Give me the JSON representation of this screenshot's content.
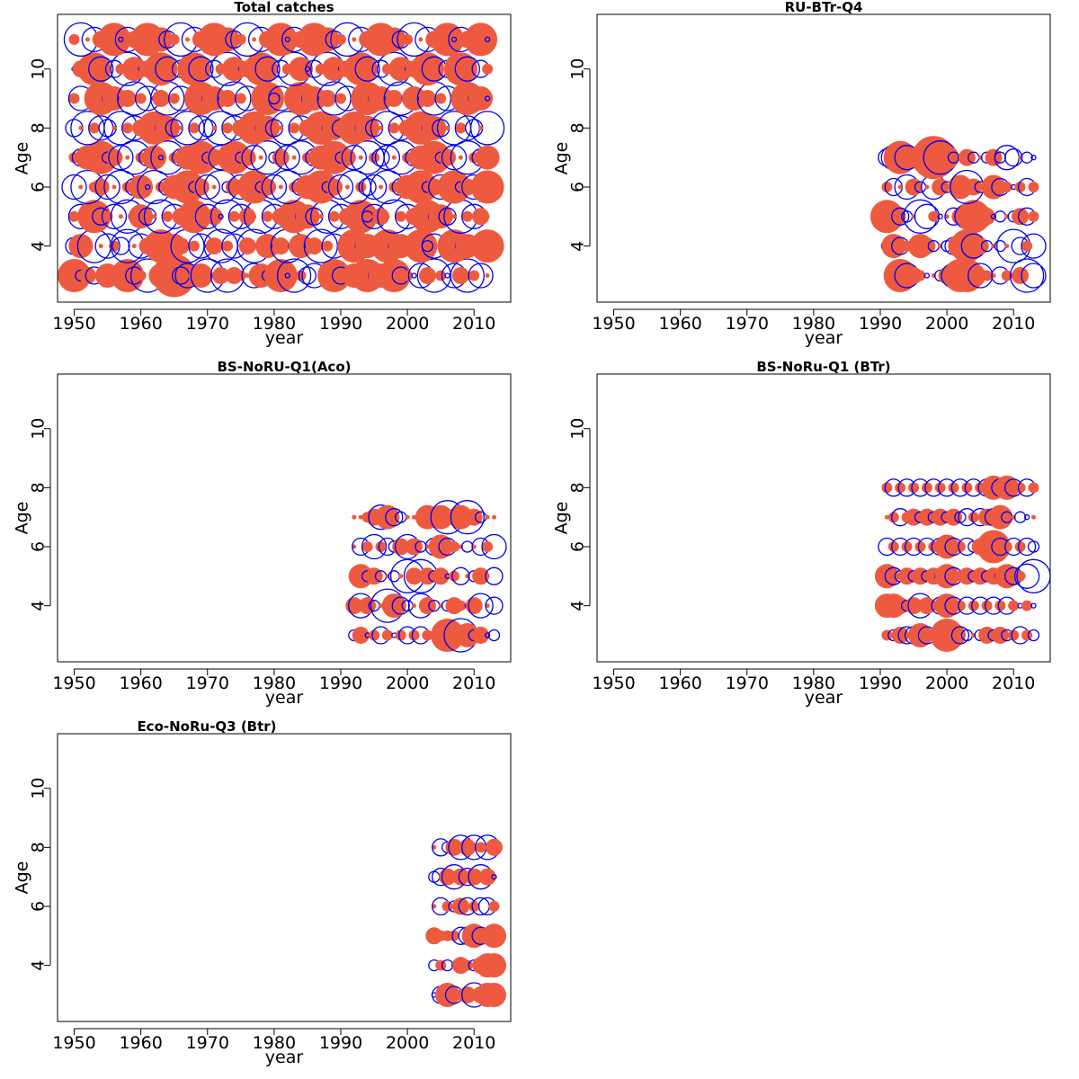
{
  "figure": {
    "x_ticks": [
      1950,
      1960,
      1970,
      1980,
      1990,
      2000,
      2010
    ],
    "y_ticks": [
      4,
      6,
      8,
      10
    ],
    "xlim": [
      1947.5,
      2015.5
    ],
    "ylim": [
      2.1,
      11.85
    ],
    "xlabel": "year",
    "ylabel": "Age",
    "colors": {
      "positive": "#ee5a40",
      "negative": "#0000ee",
      "axis": "#000000"
    }
  },
  "chart_data": [
    {
      "type": "scatter",
      "title": "Total catches",
      "xlabel": "year",
      "ylabel": "Age",
      "ages": [
        3,
        4,
        5,
        6,
        7,
        8,
        9,
        10,
        11
      ],
      "year_range": [
        1950,
        2013
      ],
      "residual_signs": [
        "+-+--++-+-+--+-+--++--+-+++-+--+--+--+-+-++-+-+-+-+--+-+--+-+-+",
        "-++-+-+--+-+-+-++-+--+-+-++-++-+--+-+-+-+-+-+--+-+-++--+-+-++-+",
        "+-++-+-+--+-+-+-+-++-+--+-++-+-+-+-+-+-+-+-+--++-+-+-+-+-+-+-++",
        "-+-++-+-+-+--+-+-+-+-+--+-++-+-+-+-+-+-+-+-+--+-+-+-+-+--+-+-++",
        "+-+-+-+-+-+-+--+-+-+-+-++-+-+--+-+-+-+-+-+-+-+--+-+-+-+-+-+-+-+",
        "-+-+--+-+-+-+-+-+-+--+-+-+-+-+-+-+-+-+-+--+-+-+-+-+-+-+-+-+--+-",
        "+-+-+-+-+-+--+-+-+-+-+-+-+-+-+--+-+-+-+-+-+-+-+-+--+-+-+-+-+-+-",
        "-+-+-+-+-+-+-+-+--+-+-+-+-+-+-+-+-+--+-+-+-+-+-+-+-+-+-+--+-+-+",
        "+-+-+-+--+-+-+-+-+-+-+-+-+-+-+-+--+-+-+-+-+-+-+-+-+-+-+-+--+-+-"
      ],
      "residual_sizes": [
        "5233141253251426342451353214423515234125314352415321435214352412",
        "3425142351432514352413524135241352413524135241352413524135241352",
        "2415324152431524315243152431524315243152431524315243152431524315",
        "4152341523415234152341523415234152341523415234152341523415234152",
        "2341523415234152341523415234152341523415234152341523415234152341",
        "3152431524315243152431524315243152431524315243152431524315243152",
        "2413524135241352413524135241352413524135241352413524135241352413",
        "1325413254132541325413254132541325413254132541325413254132541325",
        "2514325143251432514325143251432514325143251432514325143251432514"
      ]
    },
    {
      "type": "scatter",
      "title": "RU-BTr-Q4",
      "xlabel": "year",
      "ylabel": "Age",
      "ages": [
        3,
        4,
        5,
        6,
        7
      ],
      "year_range": [
        1991,
        2013
      ],
      "residual_signs": [
        "+-+-++-+-+-+++-++-+-+--",
        "-+-+-++-+--++-+-+-+--+-",
        "++--+--+-+-+-+++--+-+-+",
        "+-+-+-+-+-++-+--+-+-+-+",
        "--+-++++-+--+-+-+---+--"
      ],
      "residual_sizes": [
        "13543211234554421321354",
        "24321432123454321215324",
        "54321542113345431212332",
        "23143214321453214321232",
        "34543256542132123243121"
      ]
    },
    {
      "type": "scatter",
      "title": "BS-NoRU-Q1(Aco)",
      "xlabel": "year",
      "ylabel": "Age",
      "ages": [
        3,
        4,
        5,
        6,
        7
      ],
      "year_range": [
        1992,
        2013
      ],
      "residual_signs": [
        "-+-+-+-+-+-+-+++-+-+--",
        "+-+-+-+--+-+-+-++-+-+-",
        "-+-+-+-+-+-+-+-+-+-++-",
        "+-+-+--+-+-+-+-++-+-+-",
        "++++-+--++++++-++-+-++"
      ],
      "residual_sizes": [
        "2312321232321354542312",
        "3432154321432123213413",
        "1423212153532312312313",
        "1324232343213432121324",
        "1123443211243453453211"
      ]
    },
    {
      "type": "scatter",
      "title": "BS-NoRu-Q1 (BTr)",
      "xlabel": "year",
      "ylabel": "Age",
      "ages": [
        3,
        4,
        5,
        6,
        7,
        8
      ],
      "year_range": [
        1991,
        2013
      ],
      "residual_signs": [
        "+-+--+-+-++--+-+-+-+-+-",
        "+++-+-++-+-+-+-+-+-+-+-",
        "+--+-+-+-+-++-+-+-+-+--",
        "-+-+-+-+-+-+--+-+-+-+--",
        "++-++-+-+-+--+-+-+-+--+",
        "+-+-+-+-+-+-+-+-+-+-+-+"
      ],
      "residual_sizes": [
        "22333432254321232322322",
        "44323432343232323232121",
        "43232323243232323243245",
        "32323232343232325323232",
        "12323232323232333421211",
        "23232323232323234343232"
      ]
    },
    {
      "type": "scatter",
      "title": "Eco-NoRu-Q3 (Btr)",
      "xlabel": "year",
      "ylabel": "Age",
      "ages": [
        3,
        4,
        5,
        6,
        7,
        8
      ],
      "year_range": [
        2004,
        2013
      ],
      "residual_signs": [
        "--+-++-+++",
        "-+--++-+++",
        "++++--+-++",
        "+-+-+-+--+",
        "--+-+-+-+-",
        "+--+-+-+-+"
      ],
      "residual_sizes": [
        "1343234344",
        "2221322344",
        "3222334334",
        "1322332332",
        "2334333431",
        "1323434243"
      ]
    }
  ]
}
